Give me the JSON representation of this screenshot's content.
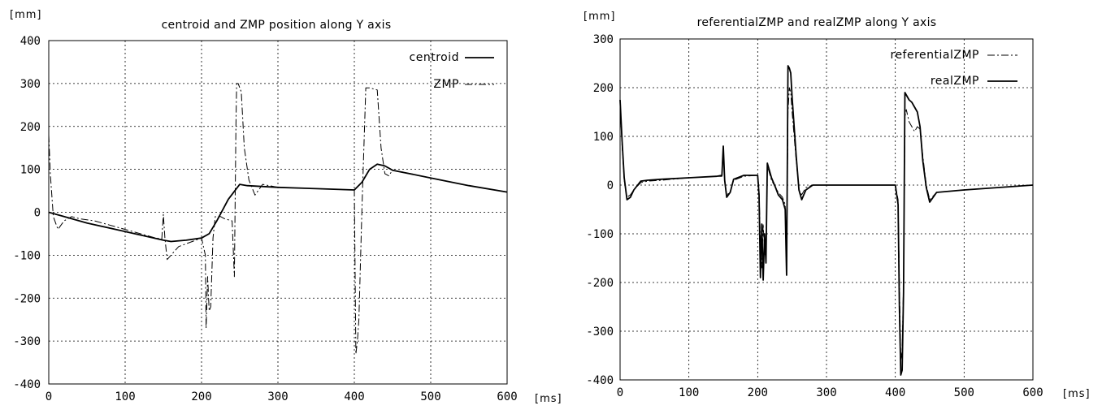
{
  "chart_data": [
    {
      "type": "line",
      "title": "centroid and ZMP position along Y axis",
      "ylabel": "[mm]",
      "xlabel": "[ms]",
      "xlim": [
        0,
        600
      ],
      "ylim": [
        -400,
        400
      ],
      "xticks": [
        0,
        100,
        200,
        300,
        400,
        500,
        600
      ],
      "yticks": [
        400,
        300,
        200,
        100,
        0,
        -100,
        -200,
        -300,
        -400
      ],
      "grid": true,
      "legend_position": "top-right",
      "series": [
        {
          "name": "centroid",
          "style": "solid",
          "x": [
            0,
            20,
            50,
            100,
            150,
            160,
            180,
            200,
            210,
            220,
            235,
            250,
            260,
            300,
            350,
            400,
            410,
            420,
            430,
            440,
            450,
            500,
            550,
            600
          ],
          "y": [
            0,
            -10,
            -25,
            -45,
            -65,
            -68,
            -65,
            -60,
            -50,
            -20,
            30,
            65,
            62,
            58,
            55,
            52,
            70,
            100,
            112,
            108,
            98,
            80,
            62,
            47
          ]
        },
        {
          "name": "ZMP",
          "style": "dashdot",
          "x": [
            0,
            2,
            6,
            12,
            20,
            30,
            40,
            60,
            100,
            140,
            148,
            150,
            152,
            155,
            160,
            170,
            185,
            200,
            205,
            206,
            208,
            210,
            212,
            215,
            218,
            220,
            225,
            230,
            240,
            243,
            245,
            246,
            248,
            252,
            256,
            262,
            270,
            280,
            300,
            350,
            400,
            402,
            404,
            406,
            410,
            415,
            420,
            430,
            435,
            440,
            445,
            450,
            460,
            500,
            550,
            600
          ],
          "y": [
            180,
            90,
            -10,
            -40,
            -20,
            -10,
            -15,
            -20,
            -40,
            -60,
            -62,
            -5,
            -60,
            -110,
            -100,
            -80,
            -70,
            -60,
            -100,
            -270,
            -150,
            -230,
            -220,
            -60,
            -10,
            -10,
            -10,
            -15,
            -20,
            -150,
            200,
            300,
            300,
            280,
            150,
            75,
            40,
            65,
            58,
            55,
            52,
            -330,
            -300,
            -250,
            10,
            290,
            290,
            285,
            150,
            90,
            85,
            98,
            95,
            80,
            62,
            47
          ]
        }
      ]
    },
    {
      "type": "line",
      "title": "referentialZMP and realZMP along Y axis",
      "ylabel": "[mm]",
      "xlabel": "[ms]",
      "xlim": [
        0,
        600
      ],
      "ylim": [
        -400,
        300
      ],
      "xticks": [
        0,
        100,
        200,
        300,
        400,
        500,
        600
      ],
      "yticks": [
        300,
        200,
        100,
        0,
        -100,
        -200,
        -300,
        -400
      ],
      "grid": true,
      "legend_position": "top-right",
      "series": [
        {
          "name": "referentialZMP",
          "style": "dashdot",
          "x": [
            0,
            3,
            6,
            10,
            15,
            20,
            30,
            40,
            60,
            100,
            140,
            148,
            150,
            152,
            155,
            160,
            165,
            180,
            200,
            202,
            204,
            206,
            208,
            210,
            212,
            214,
            216,
            220,
            226,
            230,
            236,
            240,
            242,
            244,
            246,
            248,
            250,
            256,
            260,
            264,
            270,
            280,
            300,
            350,
            400,
            404,
            406,
            408,
            410,
            412,
            414,
            416,
            420,
            424,
            428,
            432,
            436,
            440,
            445,
            450,
            460,
            500,
            550,
            600
          ],
          "y": [
            170,
            80,
            10,
            -25,
            -20,
            -10,
            5,
            8,
            10,
            15,
            18,
            18,
            75,
            10,
            -20,
            -15,
            10,
            18,
            20,
            -10,
            -120,
            -170,
            -80,
            -140,
            -150,
            40,
            30,
            10,
            -5,
            -15,
            -25,
            -40,
            -180,
            150,
            200,
            190,
            150,
            50,
            -10,
            -20,
            -5,
            0,
            0,
            0,
            0,
            -30,
            -200,
            -360,
            -340,
            -200,
            140,
            155,
            130,
            120,
            110,
            120,
            115,
            60,
            0,
            -30,
            -15,
            -10,
            -5,
            0
          ]
        },
        {
          "name": "realZMP",
          "style": "solid",
          "x": [
            0,
            3,
            6,
            10,
            15,
            20,
            30,
            40,
            60,
            100,
            140,
            148,
            150,
            152,
            155,
            160,
            165,
            180,
            200,
            202,
            204,
            206,
            208,
            210,
            212,
            214,
            216,
            220,
            226,
            230,
            236,
            240,
            242,
            244,
            246,
            248,
            250,
            256,
            260,
            264,
            270,
            280,
            300,
            350,
            400,
            404,
            406,
            408,
            410,
            412,
            414,
            416,
            420,
            424,
            428,
            432,
            436,
            440,
            445,
            450,
            460,
            500,
            550,
            600
          ],
          "y": [
            175,
            90,
            15,
            -30,
            -25,
            -10,
            8,
            10,
            12,
            15,
            18,
            20,
            80,
            10,
            -25,
            -15,
            12,
            20,
            20,
            -20,
            -190,
            -80,
            -195,
            -100,
            -160,
            45,
            35,
            15,
            -5,
            -20,
            -30,
            -50,
            -185,
            245,
            240,
            230,
            180,
            60,
            -10,
            -30,
            -10,
            0,
            0,
            0,
            0,
            -40,
            -250,
            -390,
            -380,
            -220,
            190,
            185,
            175,
            170,
            160,
            150,
            120,
            50,
            -5,
            -35,
            -15,
            -10,
            -5,
            0
          ]
        }
      ]
    }
  ]
}
